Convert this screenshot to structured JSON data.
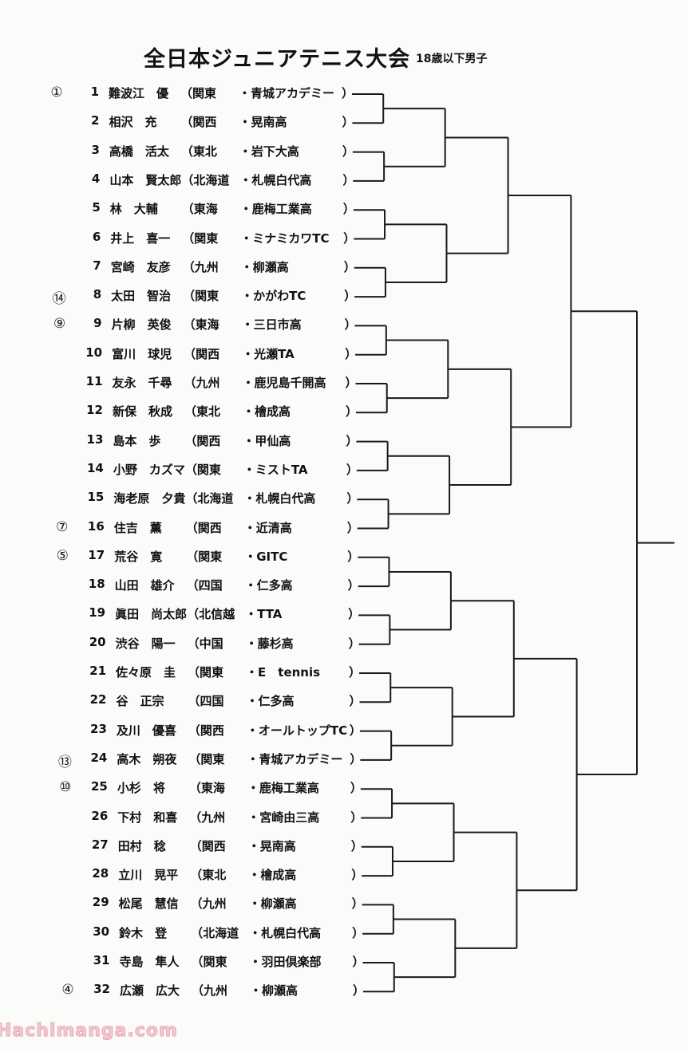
{
  "header": {
    "title": "全日本ジュニアテニス大会",
    "subtitle": "18歳以下男子"
  },
  "players": [
    {
      "seed": "①",
      "num": "1",
      "name": "難波江　優",
      "region": "（関東",
      "school": "・青城アカデミー",
      "close": "）"
    },
    {
      "seed": "",
      "num": "2",
      "name": "相沢　充",
      "region": "（関西",
      "school": "・晃南高",
      "close": "）"
    },
    {
      "seed": "",
      "num": "3",
      "name": "高橋　活太",
      "region": "（東北",
      "school": "・岩下大高",
      "close": "）"
    },
    {
      "seed": "",
      "num": "4",
      "name": "山本　賢太郎",
      "region": "（北海道",
      "school": "・札幌白代高",
      "close": "）"
    },
    {
      "seed": "",
      "num": "5",
      "name": "林　大輔",
      "region": "（東海",
      "school": "・鹿梅工業高",
      "close": "）"
    },
    {
      "seed": "",
      "num": "6",
      "name": "井上　喜一",
      "region": "（関東",
      "school": "・ミナミカワTC",
      "close": "）"
    },
    {
      "seed": "",
      "num": "7",
      "name": "宮崎　友彦",
      "region": "（九州",
      "school": "・柳瀬高",
      "close": "）"
    },
    {
      "seed": "⑭",
      "num": "8",
      "name": "太田　智治",
      "region": "（関東",
      "school": "・かがわTC",
      "close": "）"
    },
    {
      "seed": "⑨",
      "num": "9",
      "name": "片柳　英俊",
      "region": "（東海",
      "school": "・三日市高",
      "close": "）"
    },
    {
      "seed": "",
      "num": "10",
      "name": "富川　球児",
      "region": "（関西",
      "school": "・光瀬TA",
      "close": "）"
    },
    {
      "seed": "",
      "num": "11",
      "name": "友永　千尋",
      "region": "（九州",
      "school": "・鹿児島千開高",
      "close": "）"
    },
    {
      "seed": "",
      "num": "12",
      "name": "新保　秋成",
      "region": "（東北",
      "school": "・檜成高",
      "close": "）"
    },
    {
      "seed": "",
      "num": "13",
      "name": "島本　歩",
      "region": "（関西",
      "school": "・甲仙高",
      "close": "）"
    },
    {
      "seed": "",
      "num": "14",
      "name": "小野　カズマ",
      "region": "（関東",
      "school": "・ミストTA",
      "close": "）"
    },
    {
      "seed": "",
      "num": "15",
      "name": "海老原　夕貴",
      "region": "（北海道",
      "school": "・札幌白代高",
      "close": "）"
    },
    {
      "seed": "⑦",
      "num": "16",
      "name": "住吉　薫",
      "region": "（関西",
      "school": "・近清高",
      "close": "）"
    },
    {
      "seed": "⑤",
      "num": "17",
      "name": "荒谷　寛",
      "region": "（関東",
      "school": "・GITC",
      "close": "）"
    },
    {
      "seed": "",
      "num": "18",
      "name": "山田　雄介",
      "region": "（四国",
      "school": "・仁多高",
      "close": "）"
    },
    {
      "seed": "",
      "num": "19",
      "name": "眞田　尚太郎",
      "region": "（北信越",
      "school": "・TTA",
      "close": "）"
    },
    {
      "seed": "",
      "num": "20",
      "name": "渋谷　陽一",
      "region": "（中国",
      "school": "・藤杉高",
      "close": "）"
    },
    {
      "seed": "",
      "num": "21",
      "name": "佐々原　圭",
      "region": "（関東",
      "school": "・E　tennis",
      "close": "）"
    },
    {
      "seed": "",
      "num": "22",
      "name": "谷　正宗",
      "region": "（四国",
      "school": "・仁多高",
      "close": "）"
    },
    {
      "seed": "",
      "num": "23",
      "name": "及川　優喜",
      "region": "（関西",
      "school": "・オールトップTC",
      "close": "）"
    },
    {
      "seed": "⑬",
      "num": "24",
      "name": "高木　朔夜",
      "region": "（関東",
      "school": "・青城アカデミー",
      "close": "）"
    },
    {
      "seed": "⑩",
      "num": "25",
      "name": "小杉　将",
      "region": "（東海",
      "school": "・鹿梅工業高",
      "close": "）"
    },
    {
      "seed": "",
      "num": "26",
      "name": "下村　和喜",
      "region": "（九州",
      "school": "・宮崎由三高",
      "close": "）"
    },
    {
      "seed": "",
      "num": "27",
      "name": "田村　稔",
      "region": "（関西",
      "school": "・晃南高",
      "close": "）"
    },
    {
      "seed": "",
      "num": "28",
      "name": "立川　晃平",
      "region": "（東北",
      "school": "・檜成高",
      "close": "）"
    },
    {
      "seed": "",
      "num": "29",
      "name": "松尾　慧信",
      "region": "（九州",
      "school": "・柳瀬高",
      "close": "）"
    },
    {
      "seed": "",
      "num": "30",
      "name": "鈴木　登",
      "region": "（北海道",
      "school": "・札幌白代高",
      "close": "）"
    },
    {
      "seed": "",
      "num": "31",
      "name": "寺島　隼人",
      "region": "（関東",
      "school": "・羽田倶楽部",
      "close": "）"
    },
    {
      "seed": "④",
      "num": "32",
      "name": "広瀬　広大",
      "region": "（九州",
      "school": "・柳瀬高",
      "close": "）"
    }
  ],
  "bracket": {
    "draw_size": 32,
    "line_color": "#1a1a1a"
  },
  "watermark": "Hachimanga.com"
}
